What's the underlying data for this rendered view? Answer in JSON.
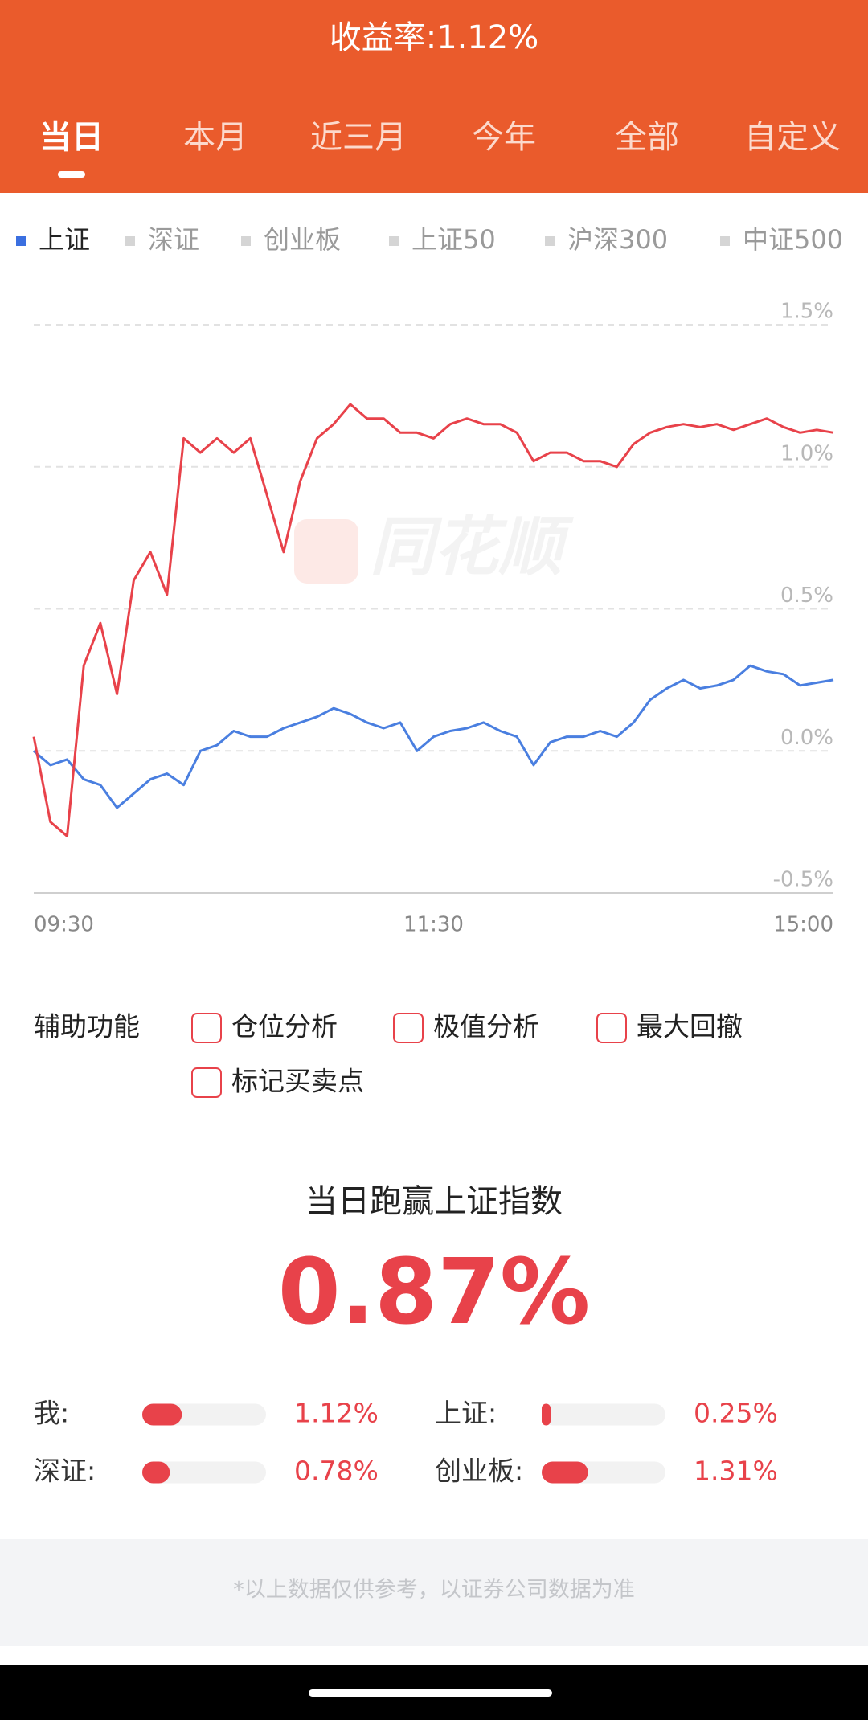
{
  "header": {
    "title": "收益率:1.12%",
    "tabs": [
      "当日",
      "本月",
      "近三月",
      "今年",
      "全部",
      "自定义"
    ],
    "active_tab": 0
  },
  "chart_data": {
    "type": "line",
    "indices": [
      "上证",
      "深证",
      "创业板",
      "上证50",
      "沪深300",
      "中证500"
    ],
    "selected_index": 0,
    "watermark": "同花顺",
    "categories": [
      "09:30",
      null,
      null,
      null,
      null,
      null,
      null,
      null,
      null,
      null,
      null,
      null,
      null,
      null,
      null,
      null,
      null,
      null,
      null,
      null,
      null,
      null,
      null,
      null,
      "11:30",
      null,
      null,
      null,
      null,
      null,
      null,
      null,
      null,
      null,
      null,
      null,
      null,
      null,
      null,
      null,
      null,
      null,
      null,
      null,
      null,
      null,
      null,
      null,
      "15:00"
    ],
    "series": [
      {
        "color": "#e8424a",
        "values": [
          0.05,
          -0.25,
          -0.3,
          0.3,
          0.45,
          0.2,
          0.6,
          0.7,
          0.55,
          1.1,
          1.05,
          1.1,
          1.05,
          1.1,
          0.9,
          0.7,
          0.95,
          1.1,
          1.15,
          1.22,
          1.17,
          1.17,
          1.12,
          1.12,
          1.1,
          1.15,
          1.17,
          1.15,
          1.15,
          1.12,
          1.02,
          1.05,
          1.05,
          1.02,
          1.02,
          1.0,
          1.08,
          1.12,
          1.14,
          1.15,
          1.14,
          1.15,
          1.13,
          1.15,
          1.17,
          1.14,
          1.12,
          1.13,
          1.12
        ]
      },
      {
        "color": "#4a7fe0",
        "values": [
          0.0,
          -0.05,
          -0.03,
          -0.1,
          -0.12,
          -0.2,
          -0.15,
          -0.1,
          -0.08,
          -0.12,
          0.0,
          0.02,
          0.07,
          0.05,
          0.05,
          0.08,
          0.1,
          0.12,
          0.15,
          0.13,
          0.1,
          0.08,
          0.1,
          0.0,
          0.05,
          0.07,
          0.08,
          0.1,
          0.07,
          0.05,
          -0.05,
          0.03,
          0.05,
          0.05,
          0.07,
          0.05,
          0.1,
          0.18,
          0.22,
          0.25,
          0.22,
          0.23,
          0.25,
          0.3,
          0.28,
          0.27,
          0.23,
          0.24,
          0.25
        ]
      }
    ],
    "ylim": [
      -0.5,
      1.5
    ],
    "yticks": [
      {
        "value": -0.5,
        "label": "-0.5%"
      },
      {
        "value": 0,
        "label": "0.0%"
      },
      {
        "value": 0.5,
        "label": "0.5%"
      },
      {
        "value": 1.0,
        "label": "1.0%"
      },
      {
        "value": 1.5,
        "label": "1.5%"
      }
    ],
    "grid": true
  },
  "aux": {
    "label": "辅助功能",
    "options": [
      "仓位分析",
      "极值分析",
      "最大回撤",
      "标记买卖点"
    ]
  },
  "compare": {
    "title": "当日跑赢上证指数",
    "value": "0.87%",
    "names": [
      "我:",
      "上证:",
      "深证:",
      "创业板:"
    ],
    "values": [
      1.12,
      0.25,
      0.78,
      1.31
    ],
    "value_labels": [
      "1.12%",
      "0.25%",
      "0.78%",
      "1.31%"
    ],
    "xlim": [
      0,
      3.5
    ]
  },
  "footer": {
    "note": "*以上数据仅供参考，以证券公司数据为准"
  }
}
